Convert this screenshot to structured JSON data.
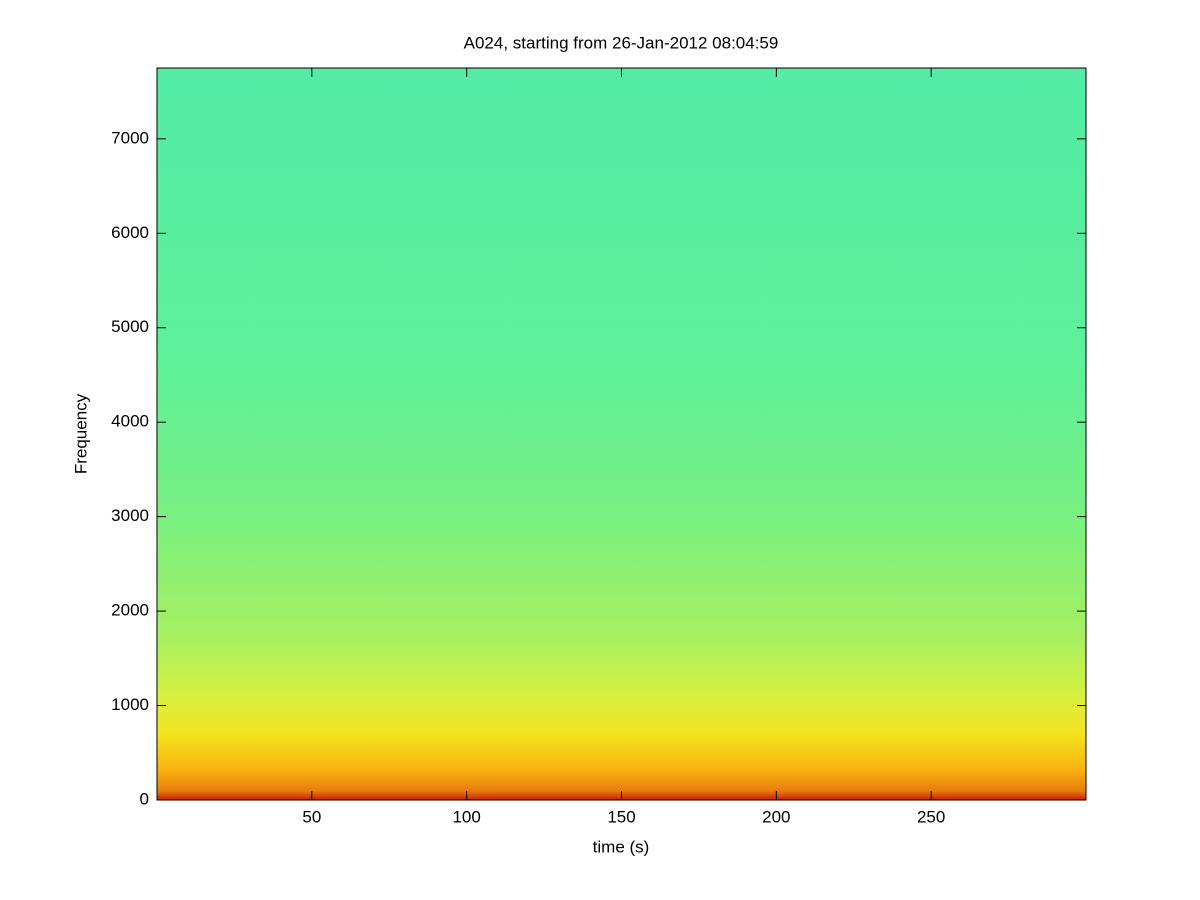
{
  "chart_data": {
    "type": "spectrogram",
    "title": "A024, starting from 26-Jan-2012 08:04:59",
    "xlabel": "time (s)",
    "ylabel": "Frequency",
    "xlim": [
      0,
      300
    ],
    "xticks": [
      50,
      100,
      150,
      200,
      250
    ],
    "ylim": [
      0,
      7750
    ],
    "yticks": [
      0,
      1000,
      2000,
      3000,
      4000,
      5000,
      6000,
      7000
    ]
  }
}
